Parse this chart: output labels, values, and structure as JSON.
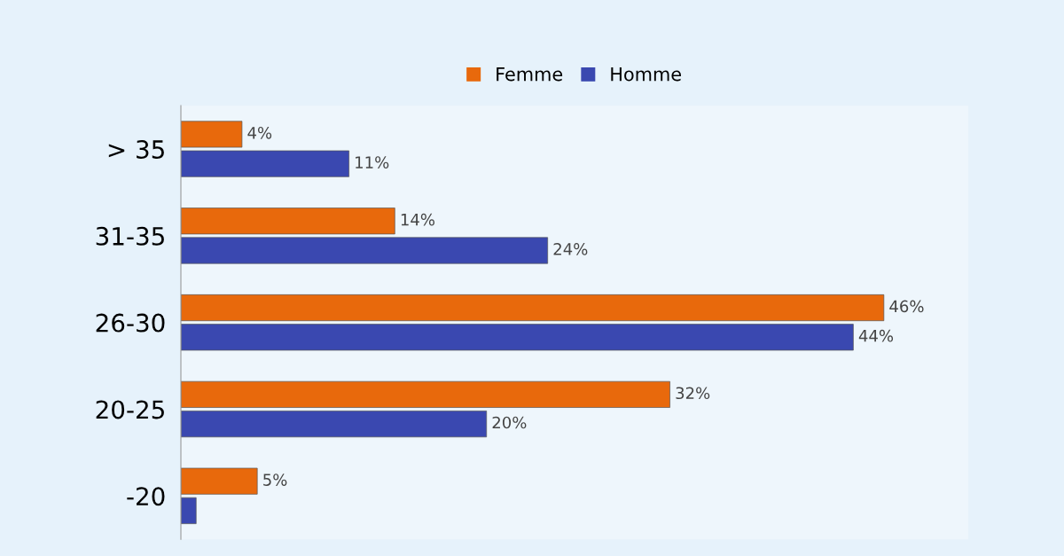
{
  "chart_data": {
    "type": "bar",
    "orientation": "horizontal",
    "categories": [
      "> 35",
      "31-35",
      "26-30",
      "20-25",
      "-20"
    ],
    "series": [
      {
        "name": "Femme",
        "color": "#e8690c",
        "values": [
          4,
          14,
          46,
          32,
          5
        ],
        "value_labels": [
          "4%",
          "14%",
          "46%",
          "32%",
          "5%"
        ]
      },
      {
        "name": "Homme",
        "color": "#3a48b0",
        "values": [
          11,
          24,
          44,
          20,
          1
        ],
        "value_labels": [
          "11%",
          "24%",
          "44%",
          "20%",
          null
        ]
      }
    ],
    "legend": "top",
    "grid": false,
    "tick_labels": "y"
  }
}
